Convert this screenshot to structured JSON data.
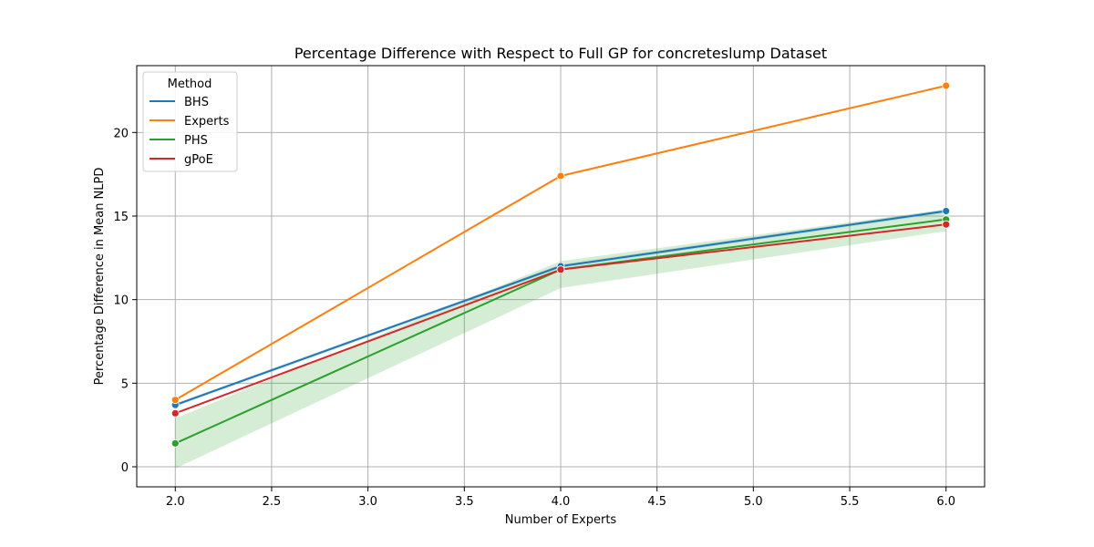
{
  "chart_data": {
    "type": "line",
    "title": "Percentage Difference with Respect to Full GP for concreteslump Dataset",
    "xlabel": "Number of Experts",
    "ylabel": "Percentage Difference in Mean NLPD",
    "x": [
      2.0,
      4.0,
      6.0
    ],
    "xlim": [
      1.8,
      6.2
    ],
    "ylim": [
      -1.2,
      24.0
    ],
    "xticks": [
      2.0,
      2.5,
      3.0,
      3.5,
      4.0,
      4.5,
      5.0,
      5.5,
      6.0
    ],
    "xtick_labels": [
      "2.0",
      "2.5",
      "3.0",
      "3.5",
      "4.0",
      "4.5",
      "5.0",
      "5.5",
      "6.0"
    ],
    "yticks": [
      0,
      5,
      10,
      15,
      20
    ],
    "ytick_labels": [
      "0",
      "5",
      "10",
      "15",
      "20"
    ],
    "grid": true,
    "legend": {
      "title": "Method",
      "placement": "top-left"
    },
    "series": [
      {
        "name": "BHS",
        "color": "#1f77b4",
        "values": [
          3.7,
          12.0,
          15.3
        ],
        "band_low": [
          3.6,
          11.9,
          15.2
        ],
        "band_high": [
          3.8,
          12.1,
          15.4
        ]
      },
      {
        "name": "Experts",
        "color": "#ff7f0e",
        "values": [
          4.0,
          17.4,
          22.8
        ]
      },
      {
        "name": "PHS",
        "color": "#2ca02c",
        "values": [
          1.4,
          11.8,
          14.8
        ],
        "band_low": [
          -0.1,
          10.7,
          14.1
        ],
        "band_high": [
          2.9,
          12.3,
          15.4
        ]
      },
      {
        "name": "gPoE",
        "color": "#d62728",
        "values": [
          3.2,
          11.8,
          14.5
        ]
      }
    ]
  }
}
